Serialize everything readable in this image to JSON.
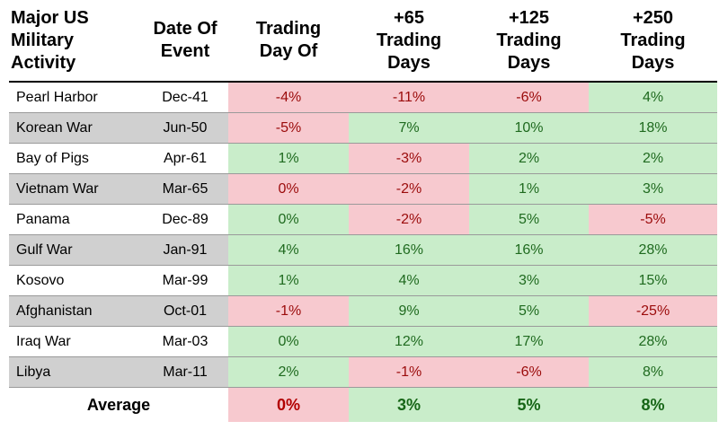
{
  "chart_data": {
    "type": "table",
    "columns": [
      "Major US Military Activity",
      "Date Of Event",
      "Trading Day Of",
      "+65 Trading Days",
      "+125 Trading Days",
      "+250 Trading Days"
    ],
    "header_lines": [
      [
        "Major US",
        "Military",
        "Activity"
      ],
      [
        "Date Of",
        "Event"
      ],
      [
        "Trading",
        "Day Of"
      ],
      [
        "+65",
        "Trading",
        "Days"
      ],
      [
        "+125",
        "Trading",
        "Days"
      ],
      [
        "+250",
        "Trading",
        "Days"
      ]
    ],
    "rows": [
      {
        "event": "Pearl Harbor",
        "date": "Dec-41",
        "values": [
          "-4%",
          "-11%",
          "-6%",
          "4%"
        ],
        "shaded": false
      },
      {
        "event": "Korean War",
        "date": "Jun-50",
        "values": [
          "-5%",
          "7%",
          "10%",
          "18%"
        ],
        "shaded": true
      },
      {
        "event": "Bay of Pigs",
        "date": "Apr-61",
        "values": [
          "1%",
          "-3%",
          "2%",
          "2%"
        ],
        "shaded": false
      },
      {
        "event": "Vietnam War",
        "date": "Mar-65",
        "values": [
          "0%",
          "-2%",
          "1%",
          "3%"
        ],
        "shaded": true
      },
      {
        "event": "Panama",
        "date": "Dec-89",
        "values": [
          "0%",
          "-2%",
          "5%",
          "-5%"
        ],
        "shaded": false
      },
      {
        "event": "Gulf War",
        "date": "Jan-91",
        "values": [
          "4%",
          "16%",
          "16%",
          "28%"
        ],
        "shaded": true
      },
      {
        "event": "Kosovo",
        "date": "Mar-99",
        "values": [
          "1%",
          "4%",
          "3%",
          "15%"
        ],
        "shaded": false
      },
      {
        "event": "Afghanistan",
        "date": "Oct-01",
        "values": [
          "-1%",
          "9%",
          "5%",
          "-25%"
        ],
        "shaded": true
      },
      {
        "event": "Iraq War",
        "date": "Mar-03",
        "values": [
          "0%",
          "12%",
          "17%",
          "28%"
        ],
        "shaded": false
      },
      {
        "event": "Libya",
        "date": "Mar-11",
        "values": [
          "2%",
          "-1%",
          "-6%",
          "8%"
        ],
        "shaded": true
      }
    ],
    "average": {
      "label": "Average",
      "values": [
        "0%",
        "3%",
        "5%",
        "8%"
      ]
    },
    "cell_colors": [
      [
        "neg",
        "neg",
        "neg",
        "pos"
      ],
      [
        "neg",
        "pos",
        "pos",
        "pos"
      ],
      [
        "pos",
        "neg",
        "pos",
        "pos"
      ],
      [
        "neg",
        "neg",
        "pos",
        "pos"
      ],
      [
        "pos",
        "neg",
        "pos",
        "neg"
      ],
      [
        "pos",
        "pos",
        "pos",
        "pos"
      ],
      [
        "pos",
        "pos",
        "pos",
        "pos"
      ],
      [
        "neg",
        "pos",
        "pos",
        "neg"
      ],
      [
        "pos",
        "pos",
        "pos",
        "pos"
      ],
      [
        "pos",
        "neg",
        "neg",
        "pos"
      ]
    ],
    "average_colors": [
      "neg",
      "pos",
      "pos",
      "pos"
    ]
  },
  "colors": {
    "negative_fill": "#f7c9cf",
    "negative_text": "#9b0b0b",
    "positive_fill": "#c9edca",
    "positive_text": "#1f6a1f",
    "shade_fill": "#d0d0d0"
  }
}
